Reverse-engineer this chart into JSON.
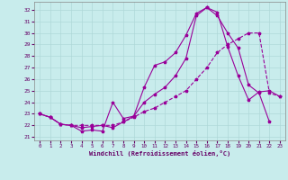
{
  "xlabel": "Windchill (Refroidissement éolien,°C)",
  "bg_color": "#c8ecec",
  "grid_color": "#afd8d8",
  "line_color": "#990099",
  "ylim": [
    20.7,
    32.7
  ],
  "xlim": [
    -0.5,
    23.5
  ],
  "yticks": [
    21,
    22,
    23,
    24,
    25,
    26,
    27,
    28,
    29,
    30,
    31,
    32
  ],
  "xticks": [
    0,
    1,
    2,
    3,
    4,
    5,
    6,
    7,
    8,
    9,
    10,
    11,
    12,
    13,
    14,
    15,
    16,
    17,
    18,
    19,
    20,
    21,
    22,
    23
  ],
  "line1_x": [
    0,
    1,
    2,
    3,
    4,
    5,
    6,
    7,
    8,
    9,
    10,
    11,
    12,
    13,
    14,
    15,
    16,
    17,
    18,
    19,
    20,
    21,
    22
  ],
  "line1_y": [
    23.0,
    22.7,
    22.1,
    22.0,
    21.5,
    21.6,
    21.5,
    24.0,
    22.6,
    22.8,
    25.3,
    27.2,
    27.5,
    28.3,
    29.8,
    31.7,
    32.2,
    31.5,
    30.0,
    28.7,
    25.5,
    24.8,
    22.3
  ],
  "line2_x": [
    0,
    1,
    2,
    3,
    4,
    5,
    6,
    7,
    8,
    9,
    10,
    11,
    12,
    13,
    14,
    15,
    16,
    17,
    18,
    19,
    20,
    21,
    22,
    23
  ],
  "line2_y": [
    23.0,
    22.7,
    22.1,
    22.0,
    21.8,
    21.9,
    22.0,
    21.8,
    22.3,
    22.8,
    24.0,
    24.7,
    25.3,
    26.3,
    27.8,
    31.5,
    32.2,
    31.8,
    28.8,
    26.3,
    24.2,
    24.9,
    25.0,
    24.5
  ],
  "line3_x": [
    0,
    1,
    2,
    3,
    4,
    5,
    6,
    7,
    8,
    9,
    10,
    11,
    12,
    13,
    14,
    15,
    16,
    17,
    18,
    19,
    20,
    21,
    22,
    23
  ],
  "line3_y": [
    23.0,
    22.7,
    22.1,
    22.0,
    22.0,
    22.0,
    22.0,
    22.0,
    22.3,
    22.7,
    23.2,
    23.5,
    24.0,
    24.5,
    25.0,
    26.0,
    27.0,
    28.3,
    29.0,
    29.5,
    30.0,
    30.0,
    24.8,
    24.5
  ]
}
